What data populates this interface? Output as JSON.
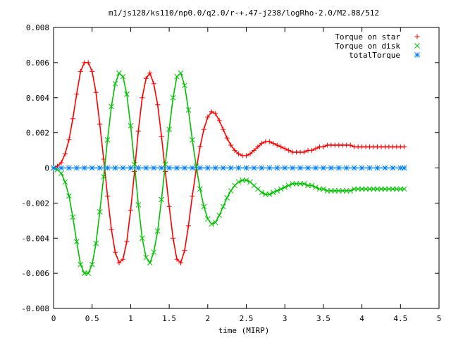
{
  "chart_data": {
    "type": "scatter",
    "title": "m1/js128/ks110/np0.0/q2.0/r-+.47-j238/logRho-2.0/M2.88/512",
    "xlabel": "time (MIRP)",
    "ylabel": "",
    "xlim": [
      0,
      5
    ],
    "ylim": [
      -0.008,
      0.008
    ],
    "xticks": [
      0,
      0.5,
      1,
      1.5,
      2,
      2.5,
      3,
      3.5,
      4,
      4.5,
      5
    ],
    "xtick_labels": [
      "0",
      "0.5",
      "1",
      "1.5",
      "2",
      "2.5",
      "3",
      "3.5",
      "4",
      "4.5",
      "5"
    ],
    "yticks": [
      -0.008,
      -0.006,
      -0.004,
      -0.002,
      0,
      0.002,
      0.004,
      0.006,
      0.008
    ],
    "ytick_labels": [
      "-0.008",
      "-0.006",
      "-0.004",
      "-0.002",
      "0",
      "0.002",
      "0.004",
      "0.006",
      "0.008"
    ],
    "grid": false,
    "legend_position": "top-right",
    "series": [
      {
        "name": "Torque on star",
        "marker": "plus",
        "color": "#ff0000",
        "x": [
          0,
          0.05,
          0.1,
          0.15,
          0.2,
          0.25,
          0.3,
          0.35,
          0.4,
          0.45,
          0.5,
          0.55,
          0.6,
          0.65,
          0.7,
          0.75,
          0.8,
          0.85,
          0.9,
          0.95,
          1.0,
          1.05,
          1.1,
          1.15,
          1.2,
          1.25,
          1.3,
          1.35,
          1.4,
          1.45,
          1.5,
          1.55,
          1.6,
          1.65,
          1.7,
          1.75,
          1.8,
          1.85,
          1.9,
          1.95,
          2.0,
          2.05,
          2.1,
          2.15,
          2.2,
          2.25,
          2.3,
          2.35,
          2.4,
          2.45,
          2.5,
          2.55,
          2.6,
          2.65,
          2.7,
          2.75,
          2.8,
          2.85,
          2.9,
          2.95,
          3.0,
          3.05,
          3.1,
          3.15,
          3.2,
          3.25,
          3.3,
          3.35,
          3.4,
          3.45,
          3.5,
          3.55,
          3.6,
          3.65,
          3.7,
          3.75,
          3.8,
          3.85,
          3.9,
          3.95,
          4.0,
          4.05,
          4.1,
          4.15,
          4.2,
          4.25,
          4.3,
          4.35,
          4.4,
          4.45,
          4.5,
          4.55
        ],
        "y": [
          0.0,
          0.0001,
          0.0003,
          0.0008,
          0.0016,
          0.0028,
          0.0042,
          0.0055,
          0.006,
          0.006,
          0.0055,
          0.0043,
          0.0025,
          0.0005,
          -0.0016,
          -0.0035,
          -0.0048,
          -0.0054,
          -0.0052,
          -0.0042,
          -0.0024,
          -0.0002,
          0.0021,
          0.004,
          0.0051,
          0.0054,
          0.0048,
          0.0036,
          0.0018,
          -0.0002,
          -0.0022,
          -0.004,
          -0.0052,
          -0.0054,
          -0.0047,
          -0.0033,
          -0.0016,
          -0.0001,
          0.0012,
          0.0022,
          0.0029,
          0.0032,
          0.0031,
          0.0027,
          0.0022,
          0.0017,
          0.0013,
          0.001,
          0.0008,
          0.0007,
          0.0007,
          0.0008,
          0.001,
          0.0012,
          0.0014,
          0.0015,
          0.0015,
          0.0014,
          0.0013,
          0.0012,
          0.0011,
          0.001,
          0.0009,
          0.0009,
          0.0009,
          0.0009,
          0.001,
          0.001,
          0.0011,
          0.0012,
          0.0012,
          0.0013,
          0.0013,
          0.0013,
          0.0013,
          0.0013,
          0.0013,
          0.0013,
          0.0012,
          0.0012,
          0.0012,
          0.0012,
          0.0012,
          0.0012,
          0.0012,
          0.0012,
          0.0012,
          0.0012,
          0.0012,
          0.0012,
          0.0012,
          0.0012
        ]
      },
      {
        "name": "Torque on disk",
        "marker": "cross",
        "color": "#00c000",
        "x": [
          0,
          0.05,
          0.1,
          0.15,
          0.2,
          0.25,
          0.3,
          0.35,
          0.4,
          0.45,
          0.5,
          0.55,
          0.6,
          0.65,
          0.7,
          0.75,
          0.8,
          0.85,
          0.9,
          0.95,
          1.0,
          1.05,
          1.1,
          1.15,
          1.2,
          1.25,
          1.3,
          1.35,
          1.4,
          1.45,
          1.5,
          1.55,
          1.6,
          1.65,
          1.7,
          1.75,
          1.8,
          1.85,
          1.9,
          1.95,
          2.0,
          2.05,
          2.1,
          2.15,
          2.2,
          2.25,
          2.3,
          2.35,
          2.4,
          2.45,
          2.5,
          2.55,
          2.6,
          2.65,
          2.7,
          2.75,
          2.8,
          2.85,
          2.9,
          2.95,
          3.0,
          3.05,
          3.1,
          3.15,
          3.2,
          3.25,
          3.3,
          3.35,
          3.4,
          3.45,
          3.5,
          3.55,
          3.6,
          3.65,
          3.7,
          3.75,
          3.8,
          3.85,
          3.9,
          3.95,
          4.0,
          4.05,
          4.1,
          4.15,
          4.2,
          4.25,
          4.3,
          4.35,
          4.4,
          4.45,
          4.5,
          4.55
        ],
        "y": [
          0.0,
          -0.0001,
          -0.0003,
          -0.0008,
          -0.0016,
          -0.0028,
          -0.0042,
          -0.0055,
          -0.006,
          -0.006,
          -0.0055,
          -0.0043,
          -0.0025,
          -0.0005,
          0.0016,
          0.0035,
          0.0048,
          0.0054,
          0.0052,
          0.0042,
          0.0024,
          0.0002,
          -0.0021,
          -0.004,
          -0.0051,
          -0.0054,
          -0.0048,
          -0.0036,
          -0.0018,
          0.0002,
          0.0022,
          0.004,
          0.0052,
          0.0054,
          0.0047,
          0.0033,
          0.0016,
          0.0001,
          -0.0012,
          -0.0022,
          -0.0029,
          -0.0032,
          -0.0031,
          -0.0027,
          -0.0022,
          -0.0017,
          -0.0013,
          -0.001,
          -0.0008,
          -0.0007,
          -0.0007,
          -0.0008,
          -0.001,
          -0.0012,
          -0.0014,
          -0.0015,
          -0.0015,
          -0.0014,
          -0.0013,
          -0.0012,
          -0.0011,
          -0.001,
          -0.0009,
          -0.0009,
          -0.0009,
          -0.0009,
          -0.001,
          -0.001,
          -0.0011,
          -0.0012,
          -0.0012,
          -0.0013,
          -0.0013,
          -0.0013,
          -0.0013,
          -0.0013,
          -0.0013,
          -0.0013,
          -0.0012,
          -0.0012,
          -0.0012,
          -0.0012,
          -0.0012,
          -0.0012,
          -0.0012,
          -0.0012,
          -0.0012,
          -0.0012,
          -0.0012,
          -0.0012,
          -0.0012,
          -0.0012
        ]
      },
      {
        "name": "totalTorque",
        "marker": "star",
        "color": "#0080ff",
        "x": [
          0,
          0.1,
          0.2,
          0.3,
          0.4,
          0.5,
          0.6,
          0.7,
          0.8,
          0.9,
          1.0,
          1.1,
          1.2,
          1.3,
          1.4,
          1.5,
          1.6,
          1.7,
          1.8,
          1.9,
          2.0,
          2.1,
          2.2,
          2.3,
          2.4,
          2.5,
          2.6,
          2.7,
          2.8,
          2.9,
          3.0,
          3.1,
          3.2,
          3.3,
          3.4,
          3.5,
          3.6,
          3.7,
          3.8,
          3.9,
          4.0,
          4.1,
          4.2,
          4.3,
          4.4,
          4.5,
          4.55
        ],
        "y": [
          0,
          0,
          0,
          0,
          0,
          0,
          0,
          0,
          0,
          0,
          0,
          0,
          0,
          0,
          0,
          0,
          0,
          0,
          0,
          0,
          0,
          0,
          0,
          0,
          0,
          0,
          0,
          0,
          0,
          0,
          0,
          0,
          0,
          0,
          0,
          0,
          0,
          0,
          0,
          0,
          0,
          0,
          0,
          0,
          0,
          0,
          0
        ]
      }
    ]
  }
}
